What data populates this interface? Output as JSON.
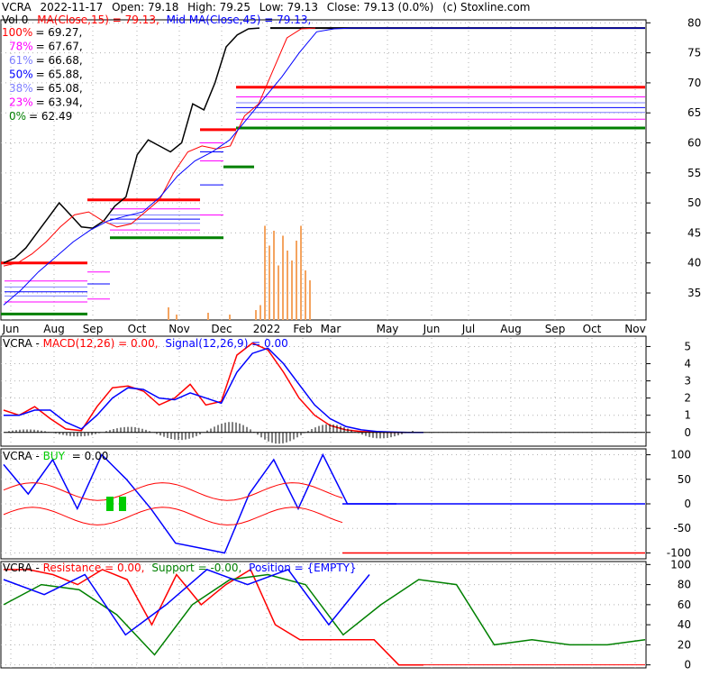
{
  "header": {
    "ticker": "VCRA",
    "date": "2022-11-17",
    "open": "Open: 79.18",
    "high": "High: 79.25",
    "low": "Low: 79.13",
    "close": "Close: 79.13 (0.0%)",
    "credit": "(c) Stoxline.com",
    "vol": "Vol 0",
    "ma_short": "MA(Close,15) = 79.13,",
    "ma_mid": "Mid MA(Close,45) = 79.13,"
  },
  "fib_levels": [
    {
      "pct": "100%",
      "value": "= 69.27,",
      "color": "#ff0000",
      "v": 69.27
    },
    {
      "pct": "78%",
      "value": "= 67.67,",
      "color": "#ff00ff",
      "v": 67.67
    },
    {
      "pct": "61%",
      "value": "= 66.68,",
      "color": "#7f7fff",
      "v": 66.68
    },
    {
      "pct": "50%",
      "value": "= 65.88,",
      "color": "#0000ff",
      "v": 65.88
    },
    {
      "pct": "38%",
      "value": "= 65.08,",
      "color": "#7f7fff",
      "v": 65.08
    },
    {
      "pct": "23%",
      "value": "= 63.94,",
      "color": "#ff00ff",
      "v": 63.94
    },
    {
      "pct": "0%",
      "value": "= 62.49",
      "color": "#008000",
      "v": 62.49
    }
  ],
  "colors": {
    "price": "#000000",
    "ma_short": "#ff0000",
    "ma_mid": "#0000ff",
    "volume": "#f4a460",
    "support": "#008000",
    "resistance": "#ff0000",
    "grid": "#b0b0b0",
    "buy": "#00cc00"
  },
  "chart_data": [
    {
      "type": "line",
      "panel": "price",
      "title": "VCRA 2022-11-17",
      "x_tick_labels": [
        "Jun",
        "Aug",
        "Sep",
        "Oct",
        "Nov",
        "Dec",
        "2022",
        "Feb",
        "Mar",
        "May",
        "Jun",
        "Jul",
        "Aug",
        "Sep",
        "Oct",
        "Nov"
      ],
      "y_tick_labels": [
        "80",
        "75",
        "70",
        "65",
        "60",
        "55",
        "50",
        "45",
        "40",
        "35"
      ],
      "ylim": [
        30.5,
        80.5
      ],
      "series": [
        {
          "name": "Close",
          "values": [
            40.0,
            40.8,
            42.5,
            45.0,
            47.5,
            50.0,
            48.0,
            46.0,
            45.8,
            47.0,
            49.5,
            51.0,
            58.0,
            60.5,
            59.5,
            58.5,
            60.0,
            66.5,
            65.5,
            70.0,
            76.0,
            78.0,
            79.0,
            79.13
          ]
        },
        {
          "name": "MA(Close,15)",
          "values": [
            39.5,
            40.0,
            41.5,
            43.5,
            46.0,
            48.0,
            48.5,
            47.0,
            46.0,
            46.5,
            48.5,
            50.5,
            55.0,
            58.5,
            59.5,
            59.0,
            59.5,
            64.5,
            66.5,
            72.0,
            77.5,
            79.0,
            79.13
          ]
        },
        {
          "name": "Mid MA(Close,45)",
          "values": [
            33.0,
            35.5,
            38.5,
            41.0,
            43.5,
            45.5,
            47.0,
            47.8,
            48.5,
            51.0,
            54.5,
            57.0,
            58.5,
            60.5,
            64.0,
            67.5,
            71.0,
            75.0,
            78.5,
            79.0,
            79.13
          ]
        }
      ],
      "fibonacci": [
        69.27,
        67.67,
        66.68,
        65.88,
        65.08,
        63.94,
        62.49
      ],
      "support_resistance": [
        {
          "kind": "resistance",
          "value": 40.0
        },
        {
          "kind": "resistance",
          "value": 50.5
        },
        {
          "kind": "support",
          "value": 44.2
        },
        {
          "kind": "resistance",
          "value": 62.2
        },
        {
          "kind": "support",
          "value": 56.0
        },
        {
          "kind": "support",
          "value": 31.5
        },
        {
          "kind": "resistance",
          "value": 69.27
        },
        {
          "kind": "support",
          "value": 62.49
        }
      ],
      "volume": [
        0.1,
        0.15,
        0.95,
        0.75,
        0.9,
        0.55,
        0.85,
        0.7,
        0.6,
        0.8,
        0.95,
        0.5,
        0.4
      ]
    },
    {
      "type": "line",
      "panel": "macd",
      "title": "VCRA - MACD(12,26) = 0.00, Signal(12,26,9) = 0.00",
      "y_tick_labels": [
        "5",
        "4",
        "3",
        "2",
        "1",
        "0"
      ],
      "ylim": [
        -0.8,
        5.6
      ],
      "series": [
        {
          "name": "MACD(12,26)",
          "values": [
            1.3,
            1.0,
            1.5,
            0.8,
            0.2,
            0.1,
            1.5,
            2.6,
            2.7,
            2.4,
            1.6,
            2.0,
            2.8,
            1.6,
            1.8,
            4.5,
            5.2,
            4.8,
            3.5,
            2.0,
            1.0,
            0.4,
            0.15,
            0.05,
            0.02,
            0.0,
            0.0,
            0.0
          ]
        },
        {
          "name": "Signal(12,26,9)",
          "values": [
            1.0,
            1.0,
            1.3,
            1.3,
            0.6,
            0.2,
            1.0,
            2.0,
            2.6,
            2.5,
            2.0,
            1.9,
            2.3,
            2.0,
            1.7,
            3.5,
            4.6,
            4.9,
            4.0,
            2.8,
            1.6,
            0.8,
            0.35,
            0.15,
            0.05,
            0.02,
            0.0,
            0.0
          ]
        }
      ]
    },
    {
      "type": "line",
      "panel": "buy",
      "title": "VCRA - BUY = 0.00",
      "y_tick_labels": [
        "100",
        "50",
        "0",
        "-50",
        "-100"
      ],
      "ylim": [
        -112,
        112
      ],
      "series": [
        {
          "name": "BUY",
          "values": [
            80,
            20,
            90,
            -10,
            100,
            50,
            -10,
            -80,
            -90,
            -100,
            20,
            90,
            -10,
            100,
            0,
            0,
            0
          ]
        }
      ]
    },
    {
      "type": "line",
      "panel": "resistance_support",
      "title": "VCRA - Resistance = 0.00, Support = -0.00, Position = {EMPTY}",
      "y_tick_labels": [
        "100",
        "80",
        "60",
        "40",
        "20",
        "0"
      ],
      "ylim": [
        -3,
        103
      ],
      "series": [
        {
          "name": "Resistance",
          "values": [
            95,
            95,
            90,
            80,
            95,
            85,
            40,
            90,
            60,
            80,
            95,
            40,
            25,
            25,
            25,
            25,
            0,
            0
          ]
        },
        {
          "name": "Support",
          "values": [
            60,
            80,
            75,
            50,
            10,
            60,
            85,
            90,
            80,
            30,
            60,
            85,
            80,
            20,
            25,
            20,
            20,
            25
          ]
        },
        {
          "name": "Position",
          "values": [
            85,
            70,
            90,
            30,
            60,
            95,
            80,
            95,
            40,
            90
          ]
        }
      ]
    }
  ],
  "panels": {
    "macd": {
      "prefix": "VCRA - ",
      "macd_label": "MACD(12,26) = 0.00,",
      "signal_label": "Signal(12,26,9) = 0.00"
    },
    "buy": {
      "prefix": "VCRA - ",
      "buy_label": "BUY",
      "buy_value": "= 0.00"
    },
    "rs": {
      "prefix": "VCRA - ",
      "res_label": "Resistance = 0.00,",
      "sup_label": "Support = -0.00,",
      "pos_label": "Position = {EMPTY}"
    }
  }
}
